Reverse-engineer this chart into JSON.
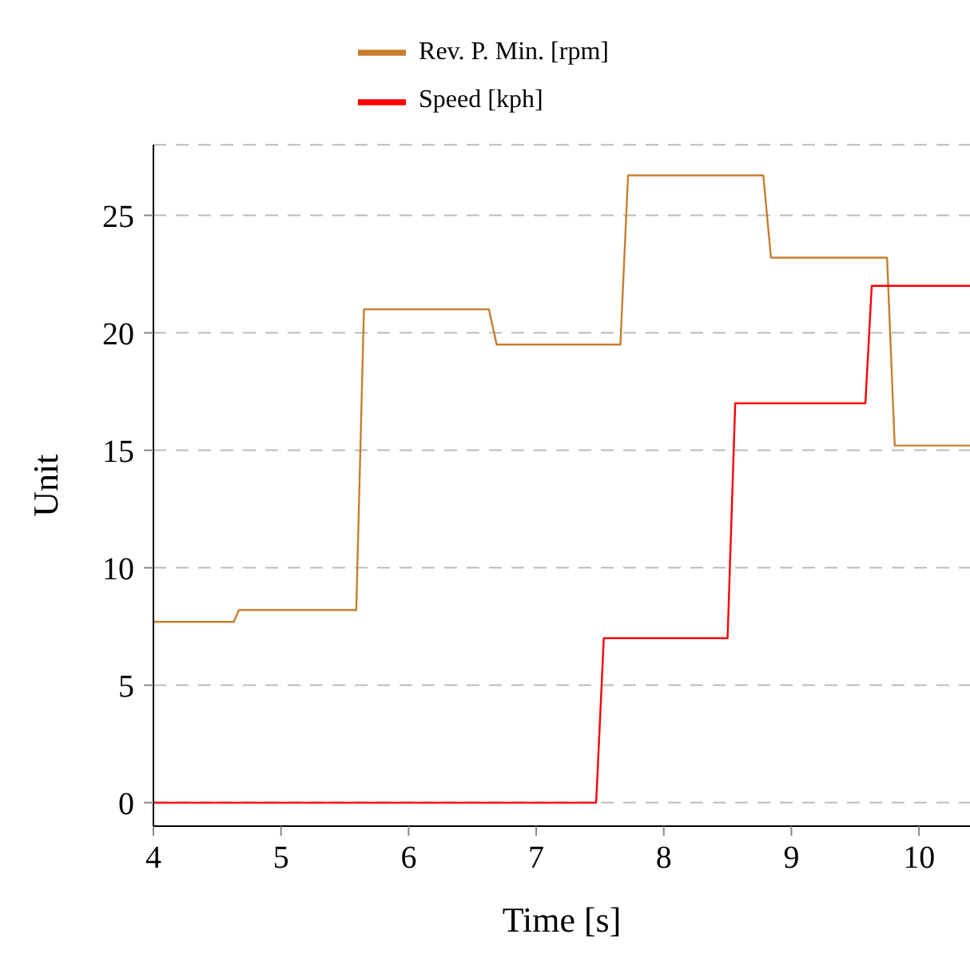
{
  "chart_data": {
    "type": "line",
    "xlabel": "Time [s]",
    "ylabel": "Unit",
    "xlim": [
      4,
      10.4
    ],
    "ylim": [
      -1,
      28
    ],
    "xticks": [
      4,
      5,
      6,
      7,
      8,
      9,
      10
    ],
    "yticks": [
      0,
      5,
      10,
      15,
      20,
      25
    ],
    "grid": "y",
    "legend": "top",
    "marker": "none",
    "line_style": "solid",
    "series": [
      {
        "name": "Rev. P. Min. [rpm]",
        "color": "#c87d2f",
        "x": [
          4,
          4.63,
          4.67,
          5.59,
          5.65,
          6.63,
          6.69,
          7.66,
          7.72,
          8.78,
          8.84,
          9.75,
          9.81,
          10.4
        ],
        "values": [
          7.7,
          7.7,
          8.2,
          8.2,
          21,
          21,
          19.5,
          19.5,
          26.7,
          26.7,
          23.2,
          23.2,
          15.2,
          15.2
        ]
      },
      {
        "name": "Speed [kph]",
        "color": "#ff0000",
        "x": [
          4,
          7.47,
          7.53,
          8.5,
          8.56,
          9.58,
          9.63,
          10.4
        ],
        "values": [
          0,
          0,
          7,
          7,
          17,
          17,
          22,
          22
        ]
      }
    ]
  }
}
